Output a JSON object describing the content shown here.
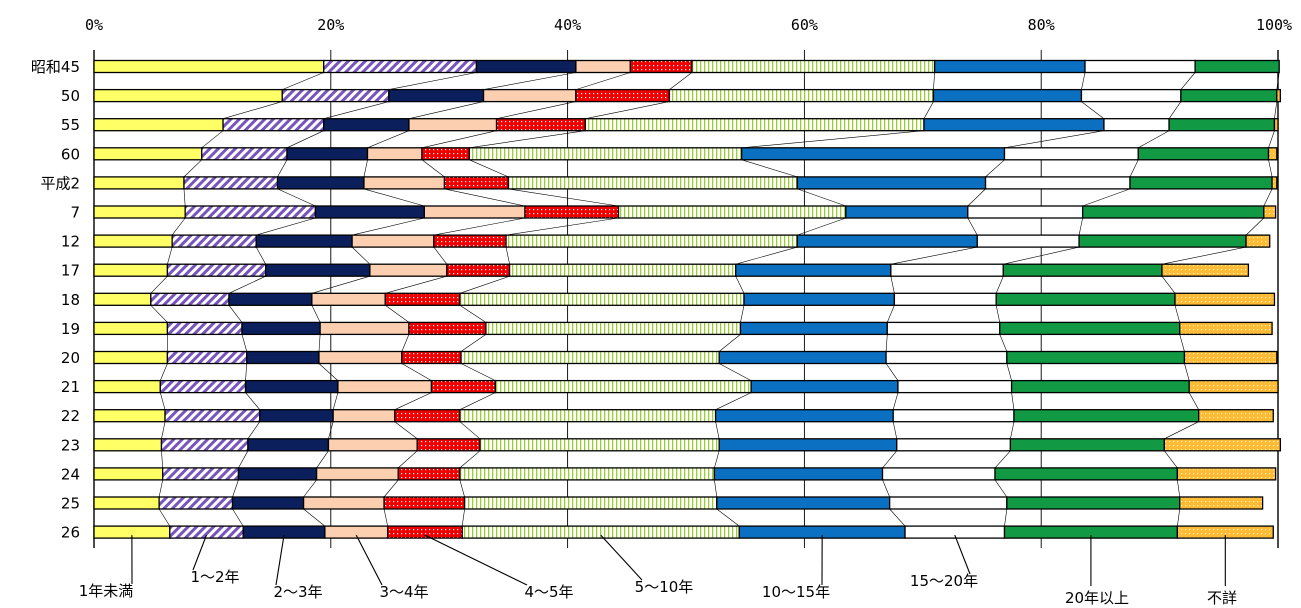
{
  "chart_data": {
    "type": "bar",
    "stacked": true,
    "orientation": "horizontal",
    "percent_axis": true,
    "xlim": [
      0,
      100
    ],
    "x_ticks": [
      "0%",
      "20%",
      "40%",
      "60%",
      "80%",
      "100%"
    ],
    "grid": true,
    "legend_placement": "bottom",
    "categories": [
      "昭和45",
      "50",
      "55",
      "60",
      "平成2",
      "7",
      "12",
      "17",
      "18",
      "19",
      "20",
      "21",
      "22",
      "23",
      "24",
      "25",
      "26"
    ],
    "series": [
      {
        "name": "1年未満",
        "color": "#ffff66",
        "pattern": "solid",
        "values": [
          19.4,
          15.9,
          10.9,
          9.1,
          7.6,
          7.7,
          6.6,
          6.2,
          4.8,
          6.2,
          6.2,
          5.6,
          6.0,
          5.7,
          5.8,
          5.5,
          6.4
        ]
      },
      {
        "name": "1～2年",
        "color": "#7755bb",
        "pattern": "diagonal",
        "values": [
          12.9,
          9.0,
          8.5,
          7.2,
          7.9,
          11.0,
          7.1,
          8.3,
          6.6,
          6.3,
          6.7,
          7.2,
          8.0,
          7.3,
          6.4,
          6.2,
          6.2
        ]
      },
      {
        "name": "2～3年",
        "color": "#0a1f5c",
        "pattern": "solid",
        "values": [
          8.4,
          8.0,
          7.2,
          6.8,
          7.3,
          9.2,
          8.1,
          8.8,
          7.0,
          6.6,
          6.1,
          7.8,
          6.2,
          6.8,
          6.6,
          6.0,
          6.9
        ]
      },
      {
        "name": "3～4年",
        "color": "#fbcfb0",
        "pattern": "solid",
        "values": [
          4.6,
          7.8,
          7.4,
          4.6,
          6.8,
          8.5,
          6.9,
          6.5,
          6.2,
          7.5,
          7.0,
          7.9,
          5.2,
          7.5,
          6.9,
          6.8,
          5.3
        ]
      },
      {
        "name": "4～5年",
        "color": "#ee0000",
        "pattern": "dots",
        "values": [
          5.2,
          7.9,
          7.5,
          4.0,
          5.4,
          7.9,
          6.1,
          5.3,
          6.3,
          6.5,
          5.0,
          5.4,
          5.5,
          5.3,
          5.2,
          6.8,
          6.3
        ]
      },
      {
        "name": "5～10年",
        "color": "#9acd32",
        "pattern": "vlines",
        "values": [
          20.5,
          22.3,
          28.6,
          23.0,
          24.4,
          19.2,
          24.6,
          19.1,
          24.0,
          21.5,
          21.8,
          21.6,
          21.6,
          20.2,
          21.5,
          21.3,
          23.4
        ]
      },
      {
        "name": "10～15年",
        "color": "#0b6fc2",
        "pattern": "solid",
        "values": [
          12.7,
          12.5,
          15.2,
          22.2,
          15.9,
          10.3,
          15.2,
          13.1,
          12.7,
          12.4,
          14.1,
          12.4,
          15.0,
          15.0,
          14.2,
          14.6,
          14.0
        ]
      },
      {
        "name": "15～20年",
        "color": "#ffffff",
        "pattern": "solid",
        "values": [
          9.3,
          8.4,
          5.5,
          11.3,
          12.2,
          9.7,
          8.6,
          9.5,
          8.6,
          9.5,
          10.2,
          9.6,
          10.2,
          9.6,
          9.5,
          9.9,
          8.4
        ]
      },
      {
        "name": "20年以上",
        "color": "#119944",
        "pattern": "solid",
        "values": [
          7.1,
          8.1,
          8.9,
          11.0,
          12.0,
          15.3,
          14.1,
          13.4,
          15.1,
          15.2,
          15.0,
          15.0,
          15.6,
          13.0,
          15.4,
          14.6,
          14.6
        ]
      },
      {
        "name": "不詳",
        "color": "#ffbb33",
        "pattern": "dots2",
        "values": [
          0.0,
          0.3,
          0.3,
          0.7,
          0.4,
          1.0,
          2.0,
          7.3,
          8.4,
          7.8,
          7.8,
          7.5,
          6.3,
          9.8,
          8.3,
          7.0,
          8.1
        ]
      }
    ]
  }
}
